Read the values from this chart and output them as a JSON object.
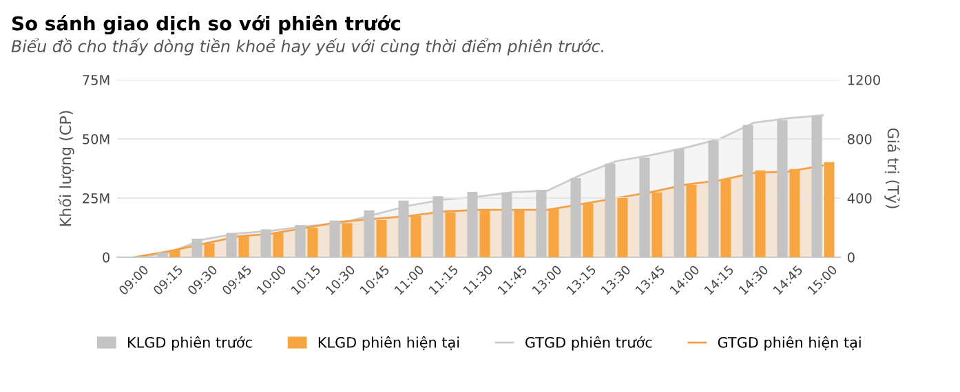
{
  "chart_data": {
    "type": "bar",
    "title": "So sánh giao dịch so với phiên trước",
    "subtitle": "Biểu đồ cho thấy dòng tiền khoẻ hay yếu với cùng thời điểm phiên trước.",
    "ylabel": "Khối lượng (CP)",
    "y2label": "Giá trị (Tỷ)",
    "categories": [
      "09:00",
      "09:15",
      "09:30",
      "09:45",
      "10:00",
      "10:15",
      "10:30",
      "10:45",
      "11:00",
      "11:15",
      "11:30",
      "11:45",
      "13:00",
      "13:15",
      "13:30",
      "13:45",
      "14:00",
      "14:15",
      "14:30",
      "14:45",
      "15:00"
    ],
    "series": [
      {
        "name": "KLGD phiên trước",
        "color": "#c4c4c4",
        "values": [
          0,
          2,
          7.8,
          10.3,
          11.8,
          13.6,
          15.5,
          19.8,
          23.9,
          25.8,
          27.6,
          27.4,
          28.5,
          33.4,
          39.6,
          42.1,
          45.8,
          49.3,
          55.9,
          57.9,
          59.6
        ]
      },
      {
        "name": "KLGD phiên hiện tại",
        "color": "#f7a541",
        "values": [
          0,
          3.1,
          5.8,
          8.9,
          10.5,
          12.4,
          14.4,
          15.7,
          17.5,
          19,
          19.8,
          20,
          20.4,
          22.7,
          25,
          27.4,
          30.5,
          33,
          36.7,
          37.3,
          40.2
        ]
      },
      {
        "name": "GTGD phiên trước",
        "type": "area",
        "axis": "y2",
        "color": "#cccccc",
        "values": [
          0,
          30,
          120,
          160,
          180,
          210,
          230,
          290,
          350,
          390,
          410,
          440,
          450,
          560,
          650,
          690,
          740,
          800,
          910,
          940,
          960
        ]
      },
      {
        "name": "GTGD phiên hiện tại",
        "type": "area",
        "axis": "y2",
        "color": "#f2a04a",
        "values": [
          0,
          40,
          90,
          140,
          160,
          200,
          240,
          260,
          280,
          310,
          320,
          320,
          320,
          360,
          400,
          440,
          490,
          520,
          570,
          580,
          620
        ]
      }
    ],
    "ylim": [
      0,
      75
    ],
    "yticks": [
      {
        "value": 0,
        "label": "0"
      },
      {
        "value": 25,
        "label": "25M"
      },
      {
        "value": 50,
        "label": "50M"
      },
      {
        "value": 75,
        "label": "75M"
      }
    ],
    "y2lim": [
      0,
      1200
    ],
    "y2ticks": [
      0,
      400,
      800,
      1200
    ],
    "grid": "y",
    "legend": "bottom"
  }
}
